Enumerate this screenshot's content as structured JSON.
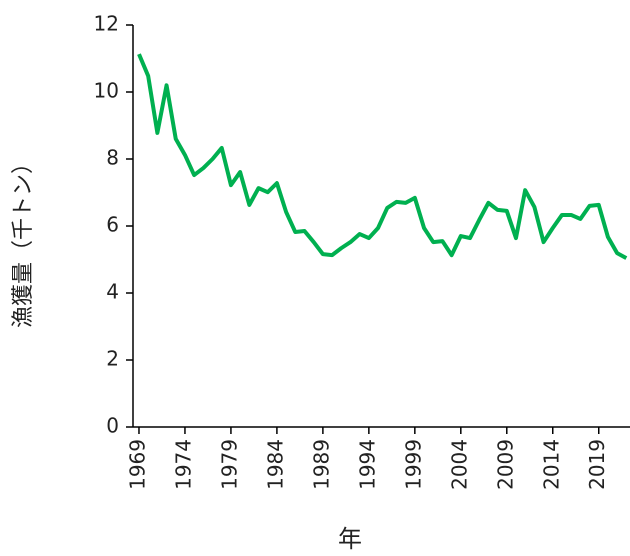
{
  "chart_data": {
    "type": "line",
    "xlabel": "年",
    "ylabel": "漁獲量（千トン）",
    "x": [
      1969,
      1970,
      1971,
      1972,
      1973,
      1974,
      1975,
      1976,
      1977,
      1978,
      1979,
      1980,
      1981,
      1982,
      1983,
      1984,
      1985,
      1986,
      1987,
      1988,
      1989,
      1990,
      1991,
      1992,
      1993,
      1994,
      1995,
      1996,
      1997,
      1998,
      1999,
      2000,
      2001,
      2002,
      2003,
      2004,
      2005,
      2006,
      2007,
      2008,
      2009,
      2010,
      2011,
      2012,
      2013,
      2014,
      2015,
      2016,
      2017,
      2018,
      2019,
      2020,
      2021,
      2022
    ],
    "series": [
      {
        "color": "#00b050",
        "values": [
          11.13,
          10.48,
          8.78,
          10.2,
          8.6,
          8.12,
          7.52,
          7.73,
          8.0,
          8.33,
          7.22,
          7.61,
          6.63,
          7.13,
          7.01,
          7.28,
          6.42,
          5.82,
          5.85,
          5.52,
          5.16,
          5.13,
          5.34,
          5.52,
          5.76,
          5.64,
          5.94,
          6.54,
          6.72,
          6.69,
          6.84,
          5.94,
          5.52,
          5.55,
          5.13,
          5.7,
          5.64,
          6.18,
          6.69,
          6.48,
          6.45,
          5.64,
          7.07,
          6.57,
          5.52,
          5.94,
          6.33,
          6.33,
          6.21,
          6.6,
          6.63,
          5.67,
          5.19,
          5.04
        ]
      }
    ],
    "xlim": [
      1968.35,
      2022.4
    ],
    "xticks": [
      1969,
      1974,
      1979,
      1984,
      1989,
      1994,
      1999,
      2004,
      2009,
      2014,
      2019
    ],
    "ylim": [
      0,
      12
    ],
    "yticks": [
      0,
      2,
      4,
      6,
      8,
      10,
      12
    ],
    "grid": false
  }
}
